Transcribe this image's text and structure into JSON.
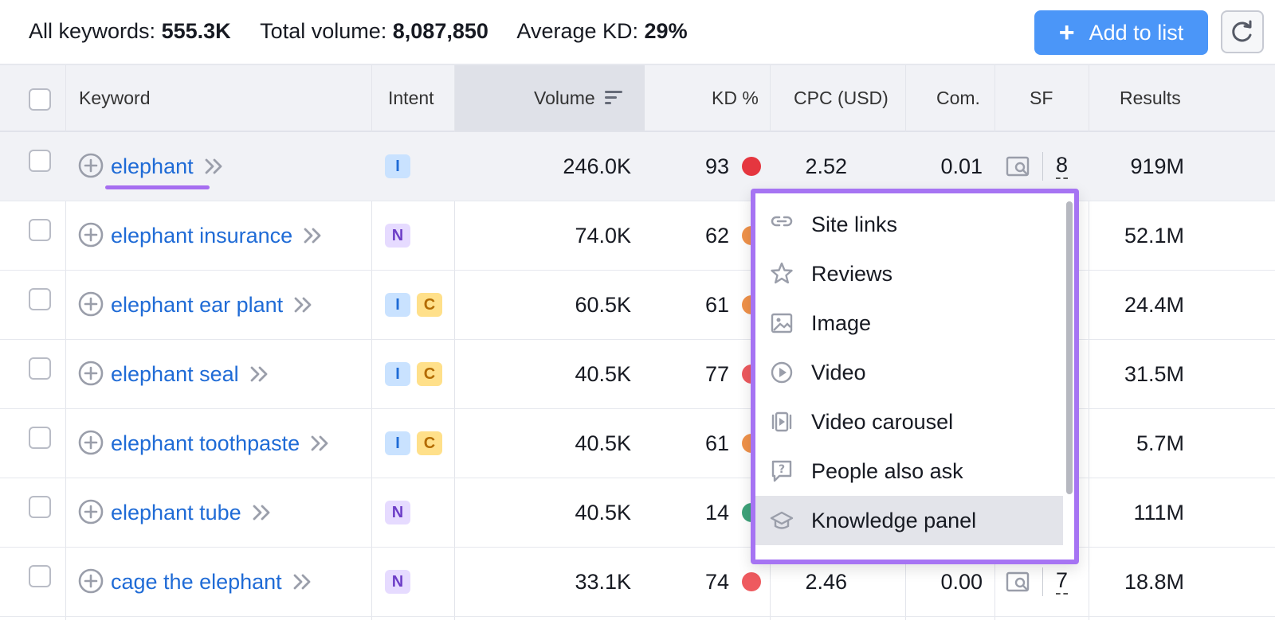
{
  "summary": {
    "all_keywords_label": "All keywords:",
    "all_keywords_value": "555.3K",
    "total_volume_label": "Total volume:",
    "total_volume_value": "8,087,850",
    "avg_kd_label": "Average KD:",
    "avg_kd_value": "29%"
  },
  "toolbar": {
    "add_label": "Add to list"
  },
  "columns": {
    "keyword": "Keyword",
    "intent": "Intent",
    "volume": "Volume",
    "kd": "KD %",
    "cpc": "CPC (USD)",
    "com": "Com.",
    "sf": "SF",
    "results": "Results"
  },
  "colors": {
    "red": "#e5363f",
    "orange": "#f0924a",
    "coral": "#ee5a5f",
    "green": "#3ea37a",
    "accent": "#a674f3",
    "button": "#4b96f8"
  },
  "rows": [
    {
      "keyword": "elephant",
      "intents": [
        "I"
      ],
      "volume": "246.0K",
      "kd": "93",
      "kd_color": "#e5363f",
      "cpc": "2.52",
      "com": "0.01",
      "sf": "8",
      "results": "919M"
    },
    {
      "keyword": "elephant insurance",
      "intents": [
        "N"
      ],
      "volume": "74.0K",
      "kd": "62",
      "kd_color": "#f0924a",
      "cpc": "",
      "com": "",
      "sf": "",
      "results": "52.1M"
    },
    {
      "keyword": "elephant ear plant",
      "intents": [
        "I",
        "C"
      ],
      "volume": "60.5K",
      "kd": "61",
      "kd_color": "#f0924a",
      "cpc": "",
      "com": "",
      "sf": "",
      "results": "24.4M"
    },
    {
      "keyword": "elephant seal",
      "intents": [
        "I",
        "C"
      ],
      "volume": "40.5K",
      "kd": "77",
      "kd_color": "#ee5a5f",
      "cpc": "",
      "com": "",
      "sf": "",
      "results": "31.5M"
    },
    {
      "keyword": "elephant toothpaste",
      "intents": [
        "I",
        "C"
      ],
      "volume": "40.5K",
      "kd": "61",
      "kd_color": "#f0924a",
      "cpc": "",
      "com": "",
      "sf": "",
      "results": "5.7M"
    },
    {
      "keyword": "elephant tube",
      "intents": [
        "N"
      ],
      "volume": "40.5K",
      "kd": "14",
      "kd_color": "#3ea37a",
      "cpc": "",
      "com": "",
      "sf": "",
      "results": "111M"
    },
    {
      "keyword": "cage the elephant",
      "intents": [
        "N"
      ],
      "volume": "33.1K",
      "kd": "74",
      "kd_color": "#ee5a5f",
      "cpc": "2.46",
      "com": "0.00",
      "sf": "7",
      "results": "18.8M"
    }
  ],
  "serp_features": [
    {
      "label": "Site links",
      "icon": "link-icon"
    },
    {
      "label": "Reviews",
      "icon": "star-icon"
    },
    {
      "label": "Image",
      "icon": "image-icon"
    },
    {
      "label": "Video",
      "icon": "play-icon"
    },
    {
      "label": "Video carousel",
      "icon": "video-carousel-icon"
    },
    {
      "label": "People also ask",
      "icon": "question-icon"
    },
    {
      "label": "Knowledge panel",
      "icon": "graduation-cap-icon"
    }
  ]
}
